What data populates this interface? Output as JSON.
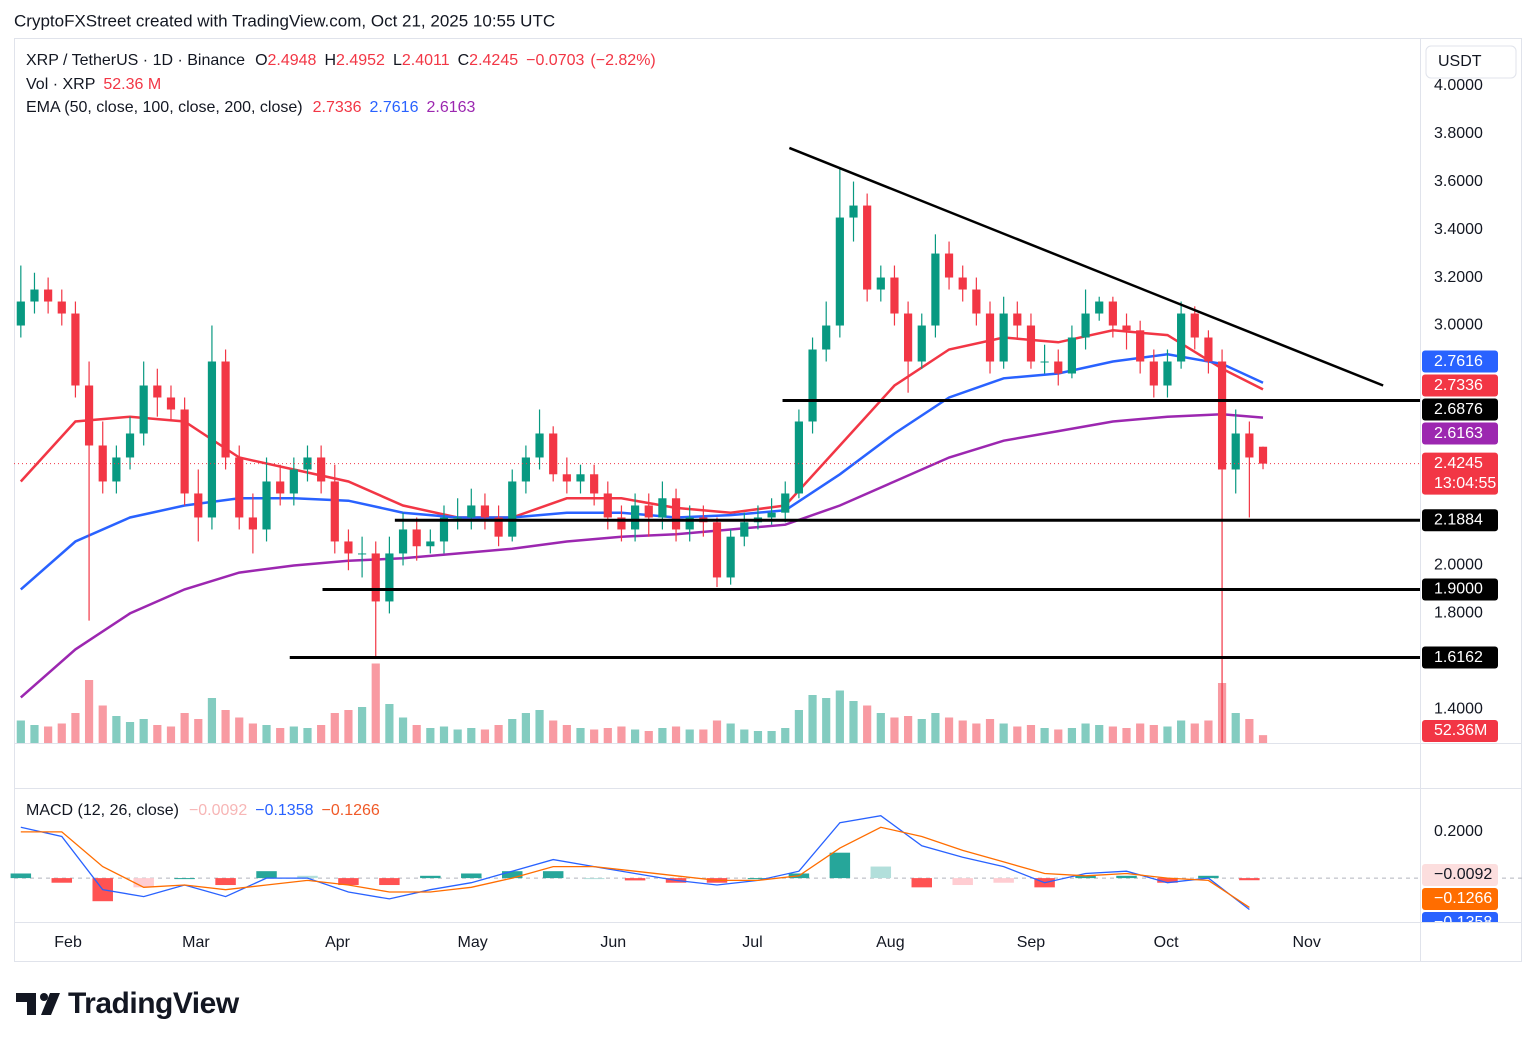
{
  "header": "CryptoFXStreet created with TradingView.com, Oct 21, 2025 10:55 UTC",
  "footer_logo": "TradingView",
  "chart_data": [
    {
      "type": "candlestick",
      "symbol_label": "XRP / TetherUS · 1D · Binance",
      "ohlc_letters": [
        "O",
        "H",
        "L",
        "C"
      ],
      "change": {
        "value": -0.0703,
        "label": "−0.0703"
      },
      "change_pct": {
        "value": -2.82,
        "label": "(−2.82%)"
      },
      "currency": "USDT",
      "countdown": "13:04:55",
      "up_color": "#089981",
      "down_color": "#f23645",
      "open": [
        3.0,
        3.1,
        3.15,
        3.1,
        3.05,
        2.75,
        2.5,
        2.35,
        2.45,
        2.55,
        2.75,
        2.7,
        2.65,
        2.3,
        2.2,
        2.85,
        2.45,
        2.2,
        2.15,
        2.35,
        2.3,
        2.4,
        2.45,
        2.35,
        2.1,
        2.05,
        2.05,
        1.85,
        2.05,
        2.15,
        2.08,
        2.1,
        2.2,
        2.2,
        2.25,
        2.2,
        2.12,
        2.35,
        2.45,
        2.55,
        2.38,
        2.35,
        2.38,
        2.3,
        2.2,
        2.15,
        2.25,
        2.2,
        2.28,
        2.15,
        2.2,
        2.18,
        1.95,
        2.12,
        2.18,
        2.2,
        2.22,
        2.3,
        2.6,
        2.9,
        3.0,
        3.45,
        3.5,
        3.15,
        3.2,
        3.05,
        2.85,
        3.0,
        3.3,
        3.2,
        3.15,
        3.05,
        2.85,
        3.05,
        3.0,
        2.85,
        2.85,
        2.8,
        2.95,
        3.05,
        3.1,
        3.0,
        2.98,
        2.85,
        2.75,
        2.85,
        3.05,
        2.95,
        2.85,
        2.4,
        2.55,
        2.4948
      ],
      "high": [
        3.25,
        3.22,
        3.2,
        3.15,
        3.1,
        2.85,
        2.6,
        2.5,
        2.62,
        2.85,
        2.82,
        2.75,
        2.7,
        2.4,
        3.0,
        2.9,
        2.5,
        2.3,
        2.45,
        2.42,
        2.45,
        2.5,
        2.5,
        2.42,
        2.15,
        2.12,
        2.1,
        2.12,
        2.22,
        2.2,
        2.15,
        2.25,
        2.28,
        2.32,
        2.3,
        2.25,
        2.4,
        2.5,
        2.65,
        2.58,
        2.45,
        2.42,
        2.42,
        2.35,
        2.25,
        2.3,
        2.3,
        2.35,
        2.32,
        2.25,
        2.25,
        2.2,
        2.15,
        2.22,
        2.25,
        2.28,
        2.35,
        2.65,
        2.95,
        3.1,
        3.66,
        3.6,
        3.55,
        3.25,
        3.25,
        3.1,
        3.05,
        3.38,
        3.35,
        3.25,
        3.2,
        3.1,
        3.12,
        3.1,
        3.05,
        2.92,
        2.9,
        3.0,
        3.15,
        3.12,
        3.12,
        3.05,
        3.02,
        2.9,
        2.9,
        3.1,
        3.08,
        2.98,
        2.9,
        2.65,
        2.6,
        2.4952
      ],
      "low": [
        2.95,
        3.05,
        3.05,
        3.0,
        2.7,
        1.77,
        2.3,
        2.3,
        2.4,
        2.5,
        2.62,
        2.6,
        2.25,
        2.1,
        2.15,
        2.4,
        2.15,
        2.05,
        2.1,
        2.25,
        2.25,
        2.35,
        2.3,
        2.05,
        1.98,
        1.95,
        1.61,
        1.8,
        2.0,
        2.02,
        2.05,
        2.05,
        2.15,
        2.15,
        2.15,
        2.08,
        2.1,
        2.3,
        2.4,
        2.35,
        2.3,
        2.3,
        2.25,
        2.15,
        2.1,
        2.1,
        2.12,
        2.15,
        2.1,
        2.1,
        2.12,
        1.91,
        1.92,
        2.08,
        2.15,
        2.17,
        2.18,
        2.28,
        2.55,
        2.85,
        2.95,
        3.35,
        3.1,
        3.1,
        3.0,
        2.72,
        2.82,
        2.95,
        3.15,
        3.1,
        3.0,
        2.8,
        2.82,
        2.95,
        2.82,
        2.8,
        2.75,
        2.78,
        2.9,
        3.02,
        2.95,
        2.9,
        2.8,
        2.7,
        2.7,
        2.82,
        2.9,
        2.8,
        1.26,
        2.3,
        2.2,
        2.4011
      ],
      "close": [
        3.1,
        3.15,
        3.1,
        3.05,
        2.75,
        2.5,
        2.35,
        2.45,
        2.55,
        2.75,
        2.7,
        2.65,
        2.3,
        2.2,
        2.85,
        2.45,
        2.2,
        2.15,
        2.35,
        2.3,
        2.4,
        2.45,
        2.35,
        2.1,
        2.05,
        2.05,
        1.85,
        2.05,
        2.15,
        2.08,
        2.1,
        2.2,
        2.2,
        2.25,
        2.2,
        2.12,
        2.35,
        2.45,
        2.55,
        2.38,
        2.35,
        2.38,
        2.3,
        2.2,
        2.15,
        2.25,
        2.2,
        2.28,
        2.15,
        2.2,
        2.18,
        1.95,
        2.12,
        2.18,
        2.2,
        2.22,
        2.3,
        2.6,
        2.9,
        3.0,
        3.45,
        3.5,
        3.15,
        3.2,
        3.05,
        2.85,
        3.0,
        3.3,
        3.2,
        3.15,
        3.05,
        2.85,
        3.05,
        3.0,
        2.85,
        2.85,
        2.8,
        2.95,
        3.05,
        3.1,
        3.0,
        2.98,
        2.85,
        2.75,
        2.85,
        3.05,
        2.95,
        2.85,
        2.4,
        2.55,
        2.45,
        2.4245
      ],
      "xlim": [
        -0.5,
        102.5
      ],
      "xticks": [
        {
          "value": 3.46,
          "label": "Feb"
        },
        {
          "value": 12.83,
          "label": "Mar"
        },
        {
          "value": 23.2,
          "label": "Apr"
        },
        {
          "value": 33.1,
          "label": "May"
        },
        {
          "value": 43.4,
          "label": "Jun"
        },
        {
          "value": 53.6,
          "label": "Jul"
        },
        {
          "value": 63.7,
          "label": "Aug"
        },
        {
          "value": 74.0,
          "label": "Sep"
        },
        {
          "value": 83.9,
          "label": "Oct"
        },
        {
          "value": 94.2,
          "label": "Nov"
        }
      ],
      "ylim": [
        1.26,
        4.19
      ],
      "yticks": [
        {
          "value": 1.4,
          "label": "1.4000"
        },
        {
          "value": 1.8,
          "label": "1.8000"
        },
        {
          "value": 2.0,
          "label": "2.0000"
        },
        {
          "value": 3.0,
          "label": "3.0000"
        },
        {
          "value": 3.2,
          "label": "3.2000"
        },
        {
          "value": 3.4,
          "label": "3.4000"
        },
        {
          "value": 3.6,
          "label": "3.6000"
        },
        {
          "value": 3.8,
          "label": "3.8000"
        },
        {
          "value": 4.0,
          "label": "4.0000"
        }
      ],
      "grid": false,
      "ema": {
        "label": "EMA (50, close, 100, close, 200, close)",
        "x": [
          0,
          4,
          8,
          12,
          16,
          20,
          24,
          28,
          32,
          36,
          40,
          44,
          48,
          52,
          56,
          60,
          64,
          68,
          72,
          76,
          80,
          84,
          88,
          91
        ],
        "series": [
          {
            "color": "#f23645",
            "values": [
              2.35,
              2.6,
              2.62,
              2.6,
              2.45,
              2.4,
              2.35,
              2.25,
              2.2,
              2.2,
              2.28,
              2.28,
              2.24,
              2.22,
              2.25,
              2.5,
              2.75,
              2.9,
              2.95,
              2.93,
              2.98,
              2.96,
              2.82,
              2.7336
            ]
          },
          {
            "color": "#2962ff",
            "values": [
              1.9,
              2.1,
              2.2,
              2.25,
              2.28,
              2.28,
              2.27,
              2.22,
              2.2,
              2.2,
              2.22,
              2.22,
              2.2,
              2.21,
              2.23,
              2.38,
              2.55,
              2.7,
              2.78,
              2.8,
              2.85,
              2.88,
              2.84,
              2.7616
            ]
          },
          {
            "color": "#9c27b0",
            "values": [
              1.45,
              1.65,
              1.8,
              1.9,
              1.97,
              2.0,
              2.02,
              2.03,
              2.05,
              2.07,
              2.1,
              2.12,
              2.13,
              2.15,
              2.17,
              2.25,
              2.35,
              2.45,
              2.52,
              2.56,
              2.6,
              2.62,
              2.63,
              2.6163
            ]
          }
        ]
      },
      "volume": {
        "label": "Vol · XRP",
        "value_label": "52.36 M",
        "tag_label": "52.36M",
        "vlim": [
          0,
          800
        ],
        "values": [
          150,
          120,
          110,
          130,
          200,
          420,
          250,
          180,
          140,
          160,
          120,
          110,
          200,
          160,
          300,
          220,
          170,
          130,
          120,
          100,
          110,
          100,
          120,
          200,
          220,
          240,
          530,
          260,
          170,
          120,
          100,
          110,
          90,
          100,
          90,
          120,
          160,
          200,
          220,
          150,
          120,
          100,
          90,
          100,
          110,
          90,
          80,
          100,
          110,
          90,
          90,
          150,
          130,
          90,
          80,
          80,
          100,
          220,
          320,
          300,
          350,
          280,
          250,
          200,
          170,
          180,
          160,
          200,
          170,
          150,
          130,
          160,
          130,
          110,
          120,
          100,
          90,
          100,
          130,
          120,
          110,
          100,
          130,
          120,
          110,
          150,
          130,
          150,
          400,
          200,
          160,
          52.36
        ]
      },
      "levels": [
        {
          "value": 2.6876,
          "label": "2.6876",
          "x_start": 55.8
        },
        {
          "value": 2.1884,
          "label": "2.1884",
          "x_start": 27.4
        },
        {
          "value": 1.9,
          "label": "1.9000",
          "x_start": 22.1
        },
        {
          "value": 1.6162,
          "label": "1.6162",
          "x_start": 19.7
        }
      ],
      "trendline": {
        "x": [
          56.3,
          99.8
        ],
        "y": [
          3.74,
          2.75
        ]
      }
    },
    {
      "type": "macd",
      "label": "MACD (12, 26, close)",
      "hist_label": "−0.0092",
      "macd_label": "−0.1358",
      "signal_label": "−0.1266",
      "macd_color": "#2962ff",
      "signal_color": "#ff6d00",
      "x": [
        0,
        3,
        6,
        9,
        12,
        15,
        18,
        21,
        24,
        27,
        30,
        33,
        36,
        39,
        42,
        45,
        48,
        51,
        54,
        57,
        60,
        63,
        66,
        69,
        72,
        75,
        78,
        81,
        84,
        87,
        90
      ],
      "hist": [
        0.02,
        -0.02,
        -0.1,
        -0.04,
        0,
        -0.03,
        0.03,
        0.01,
        -0.03,
        -0.03,
        0.01,
        0.02,
        0.03,
        0.03,
        0,
        -0.01,
        -0.02,
        -0.02,
        0,
        0.02,
        0.11,
        0.05,
        -0.04,
        -0.03,
        -0.02,
        -0.04,
        0.01,
        0.01,
        -0.02,
        0.01,
        -0.0092
      ],
      "macd": [
        0.22,
        0.18,
        -0.05,
        -0.08,
        -0.03,
        -0.08,
        0.0,
        0.0,
        -0.06,
        -0.09,
        -0.05,
        -0.02,
        0.03,
        0.08,
        0.05,
        0.02,
        -0.01,
        -0.03,
        -0.01,
        0.03,
        0.24,
        0.27,
        0.14,
        0.09,
        0.05,
        -0.02,
        0.02,
        0.03,
        -0.02,
        0.0,
        -0.1358
      ],
      "signal": [
        0.2,
        0.2,
        0.05,
        -0.04,
        -0.03,
        -0.05,
        -0.03,
        -0.01,
        -0.03,
        -0.06,
        -0.06,
        -0.04,
        0.0,
        0.05,
        0.05,
        0.03,
        0.01,
        -0.01,
        -0.01,
        0.01,
        0.13,
        0.22,
        0.18,
        0.12,
        0.07,
        0.02,
        0.01,
        0.02,
        0.0,
        -0.01,
        -0.1266
      ],
      "ylim": [
        -0.19,
        0.39
      ],
      "yticks": [
        {
          "value": 0.2,
          "label": "0.2000"
        }
      ]
    }
  ]
}
